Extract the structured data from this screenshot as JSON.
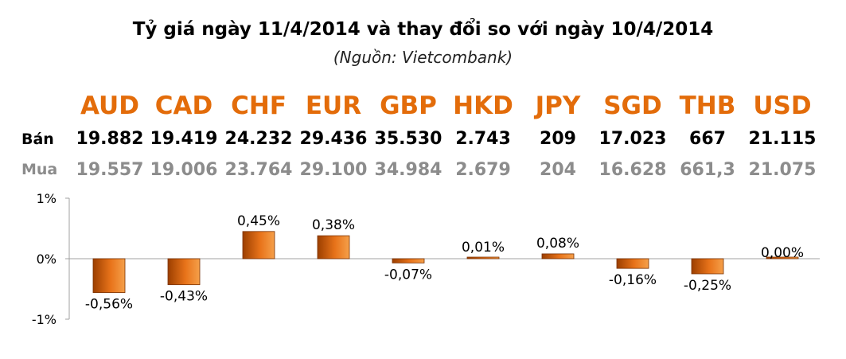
{
  "title": "Tỷ giá ngày 11/4/2014 và thay đổi so với ngày 10/4/2014",
  "subtitle": "(Nguồn: Vietcombank)",
  "row_labels": {
    "ban": "Bán",
    "mua": "Mua"
  },
  "currencies": [
    {
      "code": "AUD",
      "ban": "19.882",
      "mua": "19.557"
    },
    {
      "code": "CAD",
      "ban": "19.419",
      "mua": "19.006"
    },
    {
      "code": "CHF",
      "ban": "24.232",
      "mua": "23.764"
    },
    {
      "code": "EUR",
      "ban": "29.436",
      "mua": "29.100"
    },
    {
      "code": "GBP",
      "ban": "35.530",
      "mua": "34.984"
    },
    {
      "code": "HKD",
      "ban": "2.743",
      "mua": "2.679"
    },
    {
      "code": "JPY",
      "ban": "209",
      "mua": "204"
    },
    {
      "code": "SGD",
      "ban": "17.023",
      "mua": "16.628"
    },
    {
      "code": "THB",
      "ban": "667",
      "mua": "661,3"
    },
    {
      "code": "USD",
      "ban": "21.115",
      "mua": "21.075"
    }
  ],
  "colors": {
    "accent": "#e36c0a",
    "bar_dark": "#9c3f00",
    "bar_light": "#f5a04a",
    "buy_text": "#8c8c8c"
  },
  "chart_data": {
    "type": "bar",
    "title": "",
    "xlabel": "",
    "ylabel": "",
    "categories": [
      "AUD",
      "CAD",
      "CHF",
      "EUR",
      "GBP",
      "HKD",
      "JPY",
      "SGD",
      "THB",
      "USD"
    ],
    "values": [
      -0.56,
      -0.43,
      0.45,
      0.38,
      -0.07,
      0.01,
      0.08,
      -0.16,
      -0.25,
      0.0
    ],
    "value_labels": [
      "-0,56%",
      "-0,43%",
      "0,45%",
      "0,38%",
      "-0,07%",
      "0,01%",
      "0,08%",
      "-0,16%",
      "-0,25%",
      "0,00%"
    ],
    "ylim": [
      -1,
      1
    ],
    "yticks": [
      "1%",
      "0%",
      "-1%"
    ],
    "ytick_values": [
      1,
      0,
      -1
    ],
    "grid": false,
    "legend": "none"
  }
}
